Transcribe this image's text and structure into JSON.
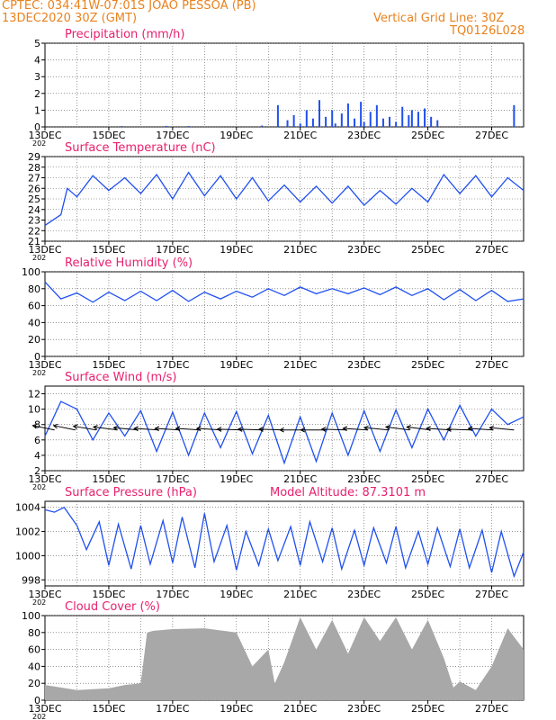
{
  "header": {
    "line1": "CPTEC:   034:41W-07:01S  JOAO PESSOA (PB)",
    "line2": "13DEC2020 30Z (GMT)",
    "grid_note": "Vertical Grid Line: 30Z",
    "run_code": "TQ0126L028"
  },
  "colors": {
    "header": "#e8821e",
    "title": "#e8206e",
    "series": "#2050f0",
    "cloud": "#a8a8a8",
    "wind_vector": "#000000"
  },
  "x_axis": {
    "tick_labels": [
      "13DEC",
      "15DEC",
      "17DEC",
      "19DEC",
      "21DEC",
      "23DEC",
      "25DEC",
      "27DEC"
    ],
    "year_stub": "202"
  },
  "chart_data": [
    {
      "type": "bar",
      "title": "Precipitation (mm/h)",
      "ylim": [
        0,
        5
      ],
      "yticks": [
        0,
        1,
        2,
        3,
        4,
        5
      ],
      "x": [
        2.4,
        3.8,
        4.5,
        6.8,
        7.3,
        7.6,
        7.8,
        8.0,
        8.2,
        8.4,
        8.6,
        8.8,
        9.0,
        9.1,
        9.3,
        9.5,
        9.7,
        9.9,
        10.0,
        10.2,
        10.4,
        10.6,
        10.8,
        11.0,
        11.2,
        11.4,
        11.5,
        11.7,
        11.9,
        12.1,
        12.3,
        14.7
      ],
      "values": [
        0.05,
        0.06,
        0.05,
        0.08,
        1.3,
        0.4,
        0.7,
        0.2,
        1.0,
        0.5,
        1.6,
        0.6,
        1.0,
        0.2,
        0.8,
        1.4,
        0.5,
        1.5,
        0.3,
        0.9,
        1.3,
        0.5,
        0.6,
        0.3,
        1.2,
        0.7,
        1.0,
        0.9,
        1.1,
        0.6,
        0.4,
        1.3
      ]
    },
    {
      "type": "line",
      "title": "Surface Temperature (nC)",
      "ylim": [
        21,
        29
      ],
      "yticks": [
        21,
        22,
        23,
        24,
        25,
        26,
        27,
        28,
        29
      ],
      "x": [
        0.0,
        0.5,
        0.7,
        1.0,
        1.5,
        2.0,
        2.5,
        3.0,
        3.5,
        4.0,
        4.5,
        5.0,
        5.5,
        6.0,
        6.5,
        7.0,
        7.5,
        8.0,
        8.5,
        9.0,
        9.5,
        10.0,
        10.5,
        11.0,
        11.5,
        12.0,
        12.5,
        13.0,
        13.5,
        14.0,
        14.5,
        15.0
      ],
      "values": [
        22.5,
        23.5,
        26.0,
        25.2,
        27.2,
        25.8,
        27.0,
        25.5,
        27.3,
        25.0,
        27.5,
        25.3,
        27.2,
        25.0,
        27.0,
        24.8,
        26.3,
        24.7,
        26.2,
        24.6,
        26.2,
        24.4,
        25.8,
        24.5,
        26.0,
        24.7,
        27.3,
        25.5,
        27.2,
        25.2,
        27.0,
        25.8
      ]
    },
    {
      "type": "line",
      "title": "Relative Humidity (%)",
      "ylim": [
        0,
        100
      ],
      "yticks": [
        0,
        20,
        40,
        60,
        80,
        100
      ],
      "x": [
        0.0,
        0.5,
        1.0,
        1.5,
        2.0,
        2.5,
        3.0,
        3.5,
        4.0,
        4.5,
        5.0,
        5.5,
        6.0,
        6.5,
        7.0,
        7.5,
        8.0,
        8.5,
        9.0,
        9.5,
        10.0,
        10.5,
        11.0,
        11.5,
        12.0,
        12.5,
        13.0,
        13.5,
        14.0,
        14.5,
        15.0
      ],
      "values": [
        88,
        68,
        75,
        64,
        76,
        66,
        77,
        66,
        78,
        65,
        76,
        68,
        77,
        70,
        80,
        72,
        82,
        74,
        80,
        74,
        81,
        73,
        82,
        72,
        80,
        67,
        79,
        66,
        78,
        65,
        68
      ]
    },
    {
      "type": "line",
      "title": "Surface Wind (m/s)",
      "ylim": [
        2,
        13
      ],
      "yticks": [
        2,
        4,
        6,
        8,
        10,
        12
      ],
      "x": [
        0.0,
        0.5,
        1.0,
        1.5,
        2.0,
        2.5,
        3.0,
        3.5,
        4.0,
        4.5,
        5.0,
        5.5,
        6.0,
        6.5,
        7.0,
        7.5,
        8.0,
        8.5,
        9.0,
        9.5,
        10.0,
        10.5,
        11.0,
        11.5,
        12.0,
        12.5,
        13.0,
        13.5,
        14.0,
        14.5,
        15.0
      ],
      "values": [
        6.5,
        11.0,
        10.0,
        6.0,
        9.5,
        6.5,
        9.8,
        4.5,
        9.6,
        4.0,
        9.5,
        5.0,
        9.7,
        4.2,
        9.2,
        3.0,
        9.0,
        3.2,
        9.5,
        4.0,
        9.8,
        4.5,
        9.9,
        5.0,
        10.0,
        6.0,
        10.5,
        6.5,
        10.0,
        8.0,
        9.0
      ],
      "vectors_degrees_from": [
        300,
        300,
        295,
        290,
        285,
        280,
        280,
        280,
        280,
        275,
        275,
        275,
        270,
        270,
        275,
        280,
        285,
        290,
        290,
        280,
        275,
        280,
        285
      ]
    },
    {
      "type": "line",
      "title": "Surface Pressure (hPa)",
      "annotation": "Model Altitude: 87.3101 m",
      "ylim": [
        997.5,
        1004.5
      ],
      "yticks": [
        998,
        1000,
        1002,
        1004
      ],
      "x": [
        0.0,
        0.3,
        0.6,
        1.0,
        1.3,
        1.7,
        2.0,
        2.3,
        2.7,
        3.0,
        3.3,
        3.7,
        4.0,
        4.3,
        4.7,
        5.0,
        5.3,
        5.7,
        6.0,
        6.3,
        6.7,
        7.0,
        7.3,
        7.7,
        8.0,
        8.3,
        8.7,
        9.0,
        9.3,
        9.7,
        10.0,
        10.3,
        10.7,
        11.0,
        11.3,
        11.7,
        12.0,
        12.3,
        12.7,
        13.0,
        13.3,
        13.7,
        14.0,
        14.3,
        14.7,
        15.0
      ],
      "values": [
        1003.8,
        1003.6,
        1004.0,
        1002.5,
        1000.5,
        1002.8,
        999.2,
        1002.6,
        998.9,
        1002.5,
        999.3,
        1002.9,
        999.4,
        1003.2,
        999.0,
        1003.5,
        999.5,
        1002.5,
        998.8,
        1002.0,
        999.2,
        1002.2,
        999.6,
        1002.4,
        999.2,
        1002.8,
        999.5,
        1002.3,
        998.9,
        1002.1,
        999.2,
        1002.3,
        999.4,
        1002.4,
        999.0,
        1002.0,
        999.3,
        1002.3,
        999.1,
        1002.2,
        999.0,
        1002.1,
        998.6,
        1002.0,
        998.3,
        1000.3
      ]
    },
    {
      "type": "area",
      "title": "Cloud Cover (%)",
      "ylim": [
        0,
        100
      ],
      "yticks": [
        0,
        20,
        40,
        60,
        80,
        100
      ],
      "x": [
        0.0,
        1.0,
        2.0,
        2.5,
        3.0,
        3.2,
        3.4,
        4.0,
        5.0,
        6.0,
        6.5,
        7.0,
        7.2,
        7.5,
        8.0,
        8.5,
        9.0,
        9.5,
        10.0,
        10.5,
        11.0,
        11.5,
        12.0,
        12.5,
        12.8,
        13.0,
        13.5,
        14.0,
        14.5,
        15.0
      ],
      "values": [
        18,
        12,
        14,
        18,
        20,
        80,
        82,
        84,
        85,
        80,
        40,
        60,
        20,
        45,
        98,
        60,
        95,
        55,
        98,
        70,
        98,
        60,
        95,
        50,
        15,
        22,
        12,
        40,
        85,
        60
      ]
    }
  ]
}
